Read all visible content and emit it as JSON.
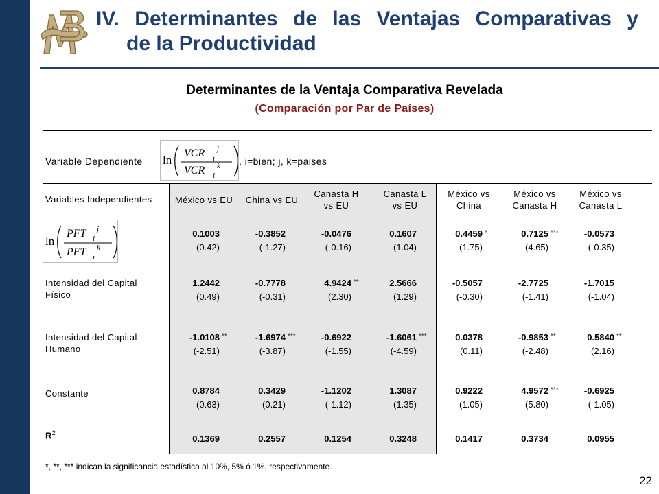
{
  "title": {
    "line1": "IV. Determinantes de las Ventajas Comparativas y",
    "line2": "de la Productividad"
  },
  "subtitle": "Determinantes de la Ventaja Comparativa Revelada",
  "subtitle2": "(Comparación por Par de Países)",
  "dependent": {
    "label": "Variable Dependiente",
    "note": ", i=bien; j, k=paises",
    "formula": {
      "ln": "ln",
      "num": "VCR",
      "num_sup": "j",
      "num_sub": "i",
      "den": "VCR",
      "den_sup": "k",
      "den_sub": "i"
    }
  },
  "independent_label": "Variables Independientes",
  "columns": [
    {
      "l1": "México vs EU",
      "l2": ""
    },
    {
      "l1": "China vs EU",
      "l2": ""
    },
    {
      "l1": "Canasta H",
      "l2": "vs EU"
    },
    {
      "l1": "Canasta L",
      "l2": "vs EU"
    },
    {
      "l1": "México vs",
      "l2": "China"
    },
    {
      "l1": "México vs",
      "l2": "Canasta H"
    },
    {
      "l1": "México vs",
      "l2": "Canasta L"
    }
  ],
  "pft_formula": {
    "ln": "ln",
    "num": "PFT",
    "num_sup": "j",
    "num_sub": "i",
    "den": "PFT",
    "den_sup": "k",
    "den_sub": "i"
  },
  "rows": [
    {
      "label1": "",
      "label2": "",
      "coef": [
        "0.1003",
        "-0.3852",
        "-0.0476",
        "0.1607",
        "0.4459",
        "0.7125",
        "-0.0573"
      ],
      "stars": [
        "",
        "",
        "",
        "",
        "*",
        "***",
        ""
      ],
      "t": [
        "(0.42)",
        "(-1.27)",
        "(-0.16)",
        "(1.04)",
        "(1.75)",
        "(4.65)",
        "(-0.35)"
      ]
    },
    {
      "label1": "Intensidad del Capital",
      "label2": "Físico",
      "coef": [
        "1.2442",
        "-0.7778",
        "4.9424",
        "2.5666",
        "-0.5057",
        "-2.7725",
        "-1.7015"
      ],
      "stars": [
        "",
        "",
        "**",
        "",
        "",
        "",
        ""
      ],
      "t": [
        "(0.49)",
        "(-0.31)",
        "(2.30)",
        "(1.29)",
        "(-0.30)",
        "(-1.41)",
        "(-1.04)"
      ]
    },
    {
      "label1": "Intensidad del Capital",
      "label2": "Humano",
      "coef": [
        "-1.0108",
        "-1.6974",
        "-0.6922",
        "-1.6061",
        "0.0378",
        "-0.9853",
        "0.5840"
      ],
      "stars": [
        "**",
        "***",
        "",
        "***",
        "",
        "**",
        "**"
      ],
      "t": [
        "(-2.51)",
        "(-3.87)",
        "(-1.55)",
        "(-4.59)",
        "(0.11)",
        "(-2.48)",
        "(2.16)"
      ]
    },
    {
      "label1": "Constante",
      "label2": "",
      "coef": [
        "0.8784",
        "0.3429",
        "-1.1202",
        "1.3087",
        "0.9222",
        "4.9572",
        "-0.6925"
      ],
      "stars": [
        "",
        "",
        "",
        "",
        "",
        "***",
        ""
      ],
      "t": [
        "(0.63)",
        "(0.21)",
        "(-1.12)",
        "(1.35)",
        "(1.05)",
        "(5.80)",
        "(-1.05)"
      ]
    }
  ],
  "r2": {
    "label": "R",
    "sup": "2",
    "values": [
      "0.1369",
      "0.2557",
      "0.1254",
      "0.3248",
      "0.1417",
      "0.3734",
      "0.0955"
    ]
  },
  "footnote": "*, **, *** indican la significancia estadística al 10%, 5% ó 1%, respectivamente.",
  "page_number": "22",
  "colors": {
    "sidebar": "#17365d",
    "title": "#1f3f73",
    "subtitle2": "#8b1a1a",
    "shade": "#e6e6e6",
    "logo": "#b0976a"
  },
  "logo_icon": "banco-de-mexico-monogram-icon"
}
